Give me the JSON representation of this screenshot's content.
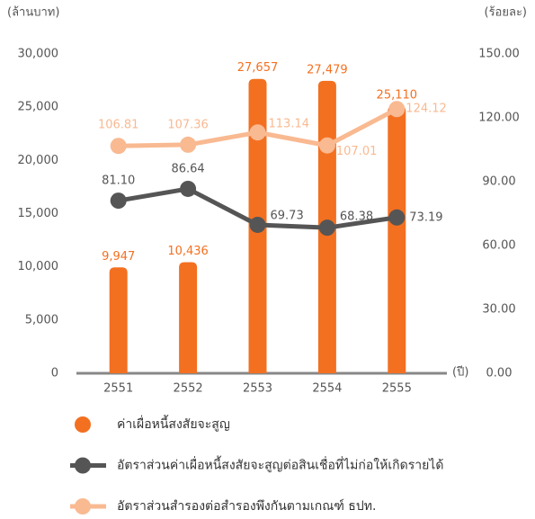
{
  "chart_data": {
    "type": "bar",
    "y_label": "(ล้านบาท)",
    "y2_label": "(ร้อยละ)",
    "x_label": "(ปี)",
    "categories": [
      "2551",
      "2552",
      "2553",
      "2554",
      "2555"
    ],
    "ylim": [
      0,
      30000
    ],
    "yticks": [
      0,
      {
        "value": 5000,
        "label": "5,000"
      },
      {
        "value": 10000,
        "label": "10,000"
      },
      {
        "value": 15000,
        "label": "15,000"
      },
      {
        "value": 20000,
        "label": "20,000"
      },
      {
        "value": 25000,
        "label": "25,000"
      },
      {
        "value": 30000,
        "label": "30,000"
      }
    ],
    "y2lim": [
      0,
      150
    ],
    "y2ticks": [
      {
        "value": 0,
        "label": "0.00"
      },
      {
        "value": 30,
        "label": "30.00"
      },
      {
        "value": 60,
        "label": "60.00"
      },
      {
        "value": 90,
        "label": "90.00"
      },
      {
        "value": 120,
        "label": "120.00"
      },
      {
        "value": 150,
        "label": "150.00"
      }
    ],
    "grid": false,
    "series": [
      {
        "name": "ค่าเผื่อหนี้สงสัยจะสูญ",
        "type": "bar",
        "color": "#f37021",
        "values": [
          9947,
          10436,
          27657,
          27479,
          25110
        ],
        "value_labels": [
          "9,947",
          "10,436",
          "27,657",
          "27,479",
          "25,110"
        ]
      },
      {
        "name": "อัตราส่วนค่าเผื่อหนี้สงสัยจะสูญต่อสินเชื่อที่ไม่ก่อให้เกิดรายได้",
        "type": "line",
        "axis": "y2",
        "color": "#555555",
        "values": [
          81.1,
          86.64,
          69.73,
          68.38,
          73.19
        ],
        "value_labels": [
          "81.10",
          "86.64",
          "69.73",
          "68.38",
          "73.19"
        ]
      },
      {
        "name": "อัตราส่วนสำรองต่อสำรองพึงกันตามเกณฑ์ ธปท.",
        "type": "line",
        "axis": "y2",
        "color": "#f9b991",
        "values": [
          106.81,
          107.36,
          113.14,
          107.01,
          124.12
        ],
        "value_labels": [
          "106.81",
          "107.36",
          "113.14",
          "107.01",
          "124.12"
        ]
      }
    ]
  }
}
